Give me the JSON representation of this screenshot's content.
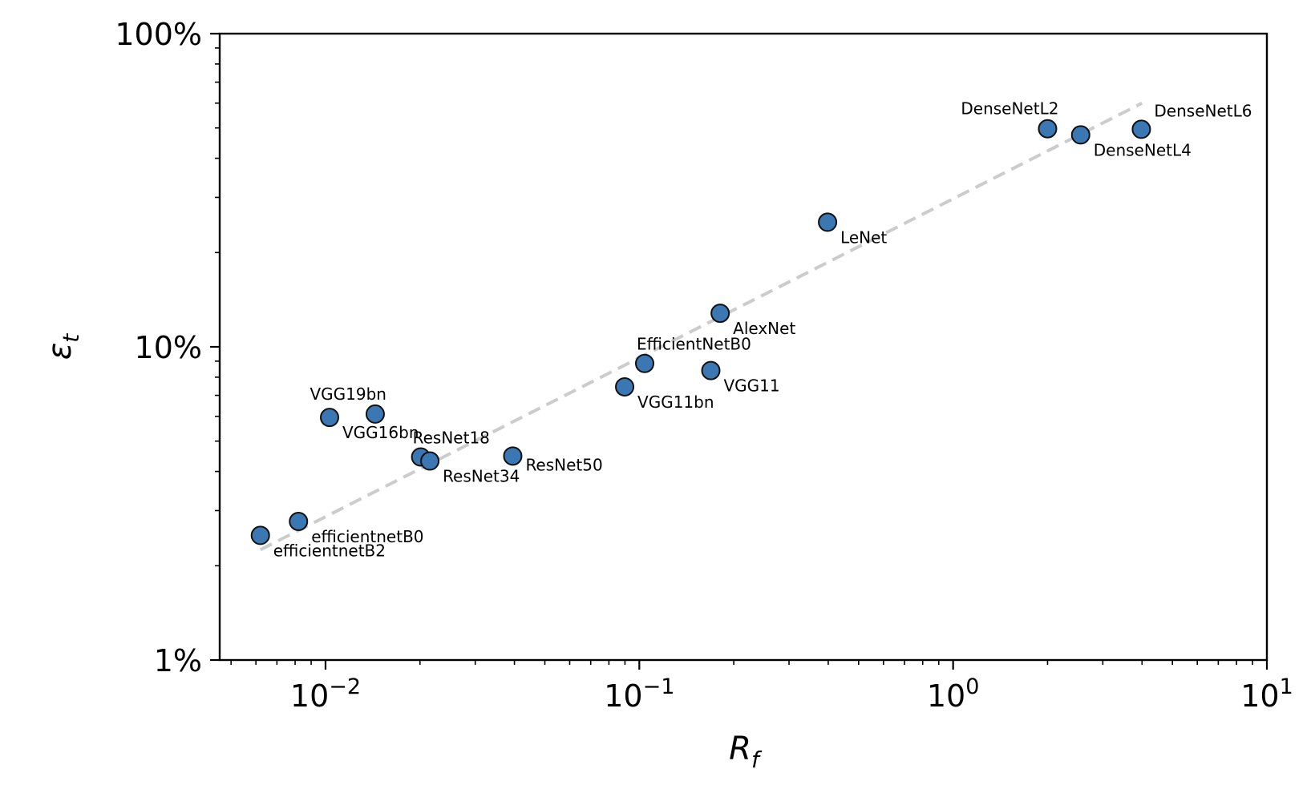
{
  "chart_data": {
    "type": "scatter",
    "title": "",
    "xlabel": {
      "base": "R",
      "sub": "f"
    },
    "ylabel": {
      "base": "ε",
      "sub": "t"
    },
    "x_scale": "log",
    "y_scale": "log",
    "xlim": [
      0.0046,
      10
    ],
    "ylim": [
      0.01,
      1.0
    ],
    "x_ticks": [
      {
        "value": 0.01,
        "base": "10",
        "exp": "−2"
      },
      {
        "value": 0.1,
        "base": "10",
        "exp": "−1"
      },
      {
        "value": 1,
        "base": "10",
        "exp": "0"
      },
      {
        "value": 10,
        "base": "10",
        "exp": "1"
      }
    ],
    "y_ticks": [
      {
        "value": 0.01,
        "label": "1%"
      },
      {
        "value": 0.1,
        "label": "10%"
      },
      {
        "value": 1.0,
        "label": "100%"
      }
    ],
    "grid": false,
    "marker_color": "#3a77b3",
    "trend_color": "#cccccc",
    "trend_line": {
      "x": [
        0.0062,
        4.0
      ],
      "y": [
        0.0225,
        0.6
      ]
    },
    "points": [
      {
        "label": "efficientnetB2",
        "x": 0.0062,
        "y": 0.025,
        "label_pos": "below-right"
      },
      {
        "label": "efficientnetB0",
        "x": 0.0082,
        "y": 0.0277,
        "label_pos": "below-right"
      },
      {
        "label": "VGG16bn",
        "x": 0.0103,
        "y": 0.0595,
        "label_pos": "below-right"
      },
      {
        "label": "VGG19bn",
        "x": 0.0144,
        "y": 0.061,
        "label_pos": "above-left"
      },
      {
        "label": "ResNet18",
        "x": 0.0201,
        "y": 0.0445,
        "label_pos": "above"
      },
      {
        "label": "ResNet34",
        "x": 0.0215,
        "y": 0.0432,
        "label_pos": "below-right"
      },
      {
        "label": "ResNet50",
        "x": 0.0395,
        "y": 0.0448,
        "label_pos": "right"
      },
      {
        "label": "VGG11bn",
        "x": 0.0898,
        "y": 0.0745,
        "label_pos": "below-right"
      },
      {
        "label": "EfficientNetB0",
        "x": 0.104,
        "y": 0.0885,
        "label_pos": "above"
      },
      {
        "label": "VGG11",
        "x": 0.169,
        "y": 0.084,
        "label_pos": "below-right"
      },
      {
        "label": "AlexNet",
        "x": 0.181,
        "y": 0.128,
        "label_pos": "below-right"
      },
      {
        "label": "LeNet",
        "x": 0.398,
        "y": 0.25,
        "label_pos": "below-right"
      },
      {
        "label": "DenseNetL2",
        "x": 2.0,
        "y": 0.497,
        "label_pos": "above-left"
      },
      {
        "label": "DenseNetL4",
        "x": 2.55,
        "y": 0.475,
        "label_pos": "below-right"
      },
      {
        "label": "DenseNetL6",
        "x": 3.98,
        "y": 0.495,
        "label_pos": "above-right"
      }
    ]
  }
}
